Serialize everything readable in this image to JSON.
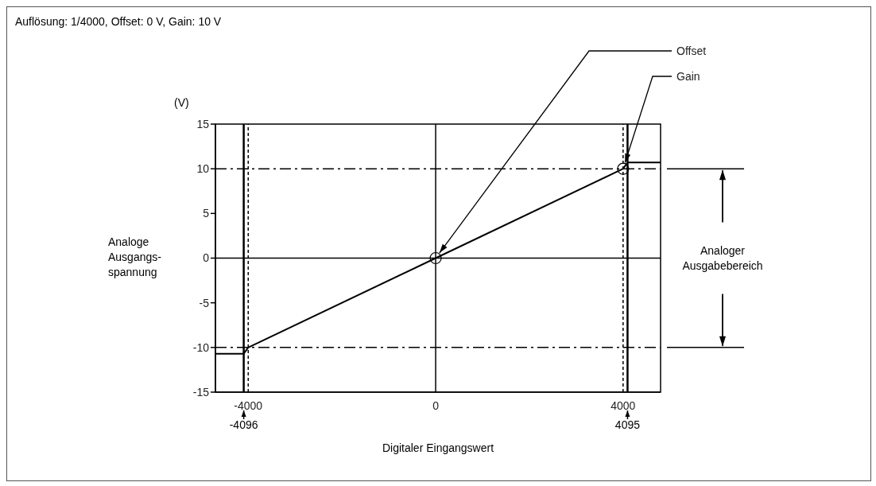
{
  "chart_data": {
    "type": "line",
    "title": "Auflösung: 1/4000, Offset: 0 V, Gain: 10 V",
    "xlabel": "Digitaler Eingangswert",
    "ylabel": "Analoge Ausgangs-spannung",
    "x": [
      -4700,
      -4096,
      -4000,
      0,
      4000,
      4095,
      4800
    ],
    "series": [
      {
        "color": "#000000",
        "values": [
          -10.7,
          -10.7,
          -10,
          0,
          10,
          10.7,
          10.7
        ]
      }
    ],
    "xlim": [
      -4700,
      4800
    ],
    "xticks": [
      -4000,
      0,
      4000
    ],
    "ylim": [
      -15,
      15
    ],
    "yticks": [
      -15,
      -10,
      -5,
      0,
      5,
      10,
      15
    ],
    "grid": false,
    "marker": "none",
    "line_style": "solid",
    "ref_lines": [
      {
        "axis": "y",
        "value": 10,
        "color": "#000000",
        "line_style": "dashed"
      },
      {
        "axis": "y",
        "value": -10,
        "color": "#000000",
        "line_style": "dashed"
      },
      {
        "axis": "y",
        "value": 0,
        "color": "#000000",
        "line_style": "solid"
      },
      {
        "axis": "x",
        "value": 0,
        "color": "#000000",
        "line_style": "solid"
      },
      {
        "axis": "x",
        "value": -4096,
        "color": "#000000",
        "line_style": "solid",
        "label": "-4096"
      },
      {
        "axis": "x",
        "value": 4095,
        "color": "#000000",
        "line_style": "solid",
        "label": "4095"
      },
      {
        "axis": "x",
        "value": -4000,
        "color": "#000000",
        "line_style": "dotted"
      },
      {
        "axis": "x",
        "value": 4000,
        "color": "#000000",
        "line_style": "dotted"
      }
    ],
    "annotations": [
      "(V)",
      "Analoger Ausgabebereich",
      {
        "text": "Offset",
        "x": 0,
        "y": 0
      },
      {
        "text": "Gain",
        "x": 4000,
        "y": 10
      }
    ]
  }
}
